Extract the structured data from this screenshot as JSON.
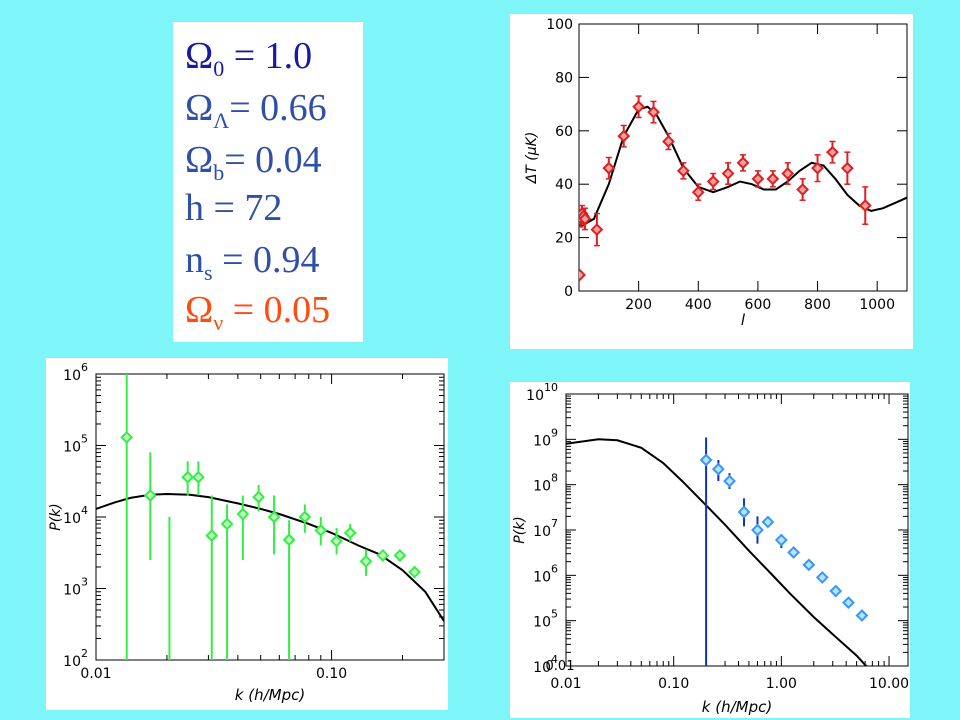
{
  "params": [
    {
      "sym": "Ω",
      "sub": "0",
      "text": " = 1.0",
      "color": "#1a1a9e"
    },
    {
      "sym": "Ω",
      "sub": "Λ",
      "text": "= 0.66",
      "color": "#2f4fa8"
    },
    {
      "sym": "Ω",
      "sub": "b",
      "text": "= 0.04",
      "color": "#2f4fa8"
    },
    {
      "sym": "",
      "sub": "",
      "text": "h = 72",
      "color": "#2f4fa8"
    },
    {
      "sym": "n",
      "sub": "s",
      "text": " = 0.94",
      "color": "#2f4fa8"
    },
    {
      "sym": "Ω",
      "sub": "ν",
      "text": " = 0.05",
      "color": "#ff4a10"
    }
  ],
  "chart_data": [
    {
      "type": "scatter",
      "xlabel": "l",
      "ylabel": "ΔT (μK)",
      "xlim": [
        0,
        1100
      ],
      "ylim": [
        0,
        100
      ],
      "xticks": [
        200,
        400,
        600,
        800,
        1000
      ],
      "xtick_labels": [
        "200",
        "400",
        "600",
        "800",
        "1000"
      ],
      "yticks": [
        0,
        20,
        40,
        60,
        80,
        100
      ],
      "ytick_labels": [
        "0",
        "20",
        "40",
        "60",
        "80",
        "100"
      ],
      "color": "#dd2020",
      "points": [
        [
          2,
          6,
          0
        ],
        [
          5,
          27,
          3
        ],
        [
          10,
          29,
          3
        ],
        [
          15,
          28,
          3
        ],
        [
          20,
          27,
          4
        ],
        [
          60,
          23,
          6
        ],
        [
          100,
          46,
          4
        ],
        [
          150,
          58,
          4
        ],
        [
          200,
          69,
          4
        ],
        [
          250,
          67,
          4
        ],
        [
          300,
          56,
          3
        ],
        [
          350,
          45,
          3
        ],
        [
          400,
          37,
          3
        ],
        [
          450,
          41,
          3
        ],
        [
          500,
          44,
          4
        ],
        [
          550,
          48,
          3
        ],
        [
          600,
          42,
          3
        ],
        [
          650,
          42,
          3
        ],
        [
          700,
          44,
          4
        ],
        [
          750,
          38,
          4
        ],
        [
          800,
          46,
          5
        ],
        [
          850,
          52,
          4
        ],
        [
          900,
          46,
          6
        ],
        [
          960,
          32,
          7
        ]
      ],
      "theory": [
        [
          2,
          24
        ],
        [
          50,
          27
        ],
        [
          100,
          40
        ],
        [
          150,
          58
        ],
        [
          200,
          68
        ],
        [
          230,
          69
        ],
        [
          260,
          66
        ],
        [
          300,
          58
        ],
        [
          350,
          46
        ],
        [
          400,
          39
        ],
        [
          450,
          37
        ],
        [
          500,
          39
        ],
        [
          540,
          41
        ],
        [
          580,
          40
        ],
        [
          620,
          38
        ],
        [
          660,
          38
        ],
        [
          700,
          41
        ],
        [
          740,
          45
        ],
        [
          780,
          48
        ],
        [
          820,
          47
        ],
        [
          860,
          42
        ],
        [
          900,
          36
        ],
        [
          940,
          32
        ],
        [
          980,
          30
        ],
        [
          1020,
          31
        ],
        [
          1060,
          33
        ],
        [
          1100,
          35
        ]
      ]
    },
    {
      "type": "scatter",
      "xlabel": "k   (h/Mpc)",
      "ylabel": "P(k)",
      "xscale": "log",
      "yscale": "log",
      "xlim": [
        0.01,
        0.3
      ],
      "ylim": [
        100,
        1000000
      ],
      "xticks": [
        0.01,
        0.1
      ],
      "xtick_labels": [
        "0.01",
        "0.10"
      ],
      "yticks": [
        100,
        1000,
        10000,
        100000,
        1000000
      ],
      "ytick_labels": [
        [
          "10",
          "2"
        ],
        [
          "10",
          "3"
        ],
        [
          "10",
          "4"
        ],
        [
          "10",
          "5"
        ],
        [
          "10",
          "6"
        ]
      ],
      "color": "#33ee44",
      "points": [
        [
          0.0135,
          130000,
          100,
          1000000
        ],
        [
          0.017,
          20000,
          2500,
          80000
        ],
        [
          0.0245,
          36000,
          20000,
          60000
        ],
        [
          0.0272,
          36000,
          20000,
          60000
        ],
        [
          0.031,
          5500,
          100,
          20000
        ],
        [
          0.036,
          8000,
          100,
          15000
        ],
        [
          0.042,
          11000,
          2500,
          20000
        ],
        [
          0.049,
          19000,
          12000,
          28000
        ],
        [
          0.057,
          10000,
          3000,
          20000
        ],
        [
          0.066,
          4800,
          100,
          9000
        ],
        [
          0.077,
          10000,
          6000,
          15000
        ],
        [
          0.09,
          6500,
          4000,
          10000
        ],
        [
          0.105,
          4600,
          3000,
          7000
        ],
        [
          0.12,
          6000,
          4500,
          8000
        ],
        [
          0.14,
          2400,
          1500,
          3500
        ],
        [
          0.165,
          2900,
          2400,
          3500
        ],
        [
          0.195,
          2900,
          2400,
          3400
        ],
        [
          0.225,
          1700,
          1400,
          2000
        ]
      ],
      "extra_segments": [
        [
          0.0205,
          100,
          10000
        ]
      ],
      "theory": [
        [
          0.01,
          13000
        ],
        [
          0.012,
          16000
        ],
        [
          0.014,
          18500
        ],
        [
          0.017,
          20500
        ],
        [
          0.02,
          21000
        ],
        [
          0.025,
          20500
        ],
        [
          0.03,
          19000
        ],
        [
          0.04,
          15500
        ],
        [
          0.05,
          13000
        ],
        [
          0.06,
          11000
        ],
        [
          0.08,
          8000
        ],
        [
          0.1,
          6000
        ],
        [
          0.13,
          4000
        ],
        [
          0.16,
          3000
        ],
        [
          0.2,
          1800
        ],
        [
          0.25,
          900
        ],
        [
          0.3,
          350
        ]
      ]
    },
    {
      "type": "scatter",
      "xlabel": "k   (h/Mpc)",
      "ylabel": "P(k)",
      "xscale": "log",
      "yscale": "log",
      "xlim": [
        0.01,
        15
      ],
      "ylim": [
        10000,
        10000000000
      ],
      "xticks": [
        0.01,
        0.1,
        1,
        10
      ],
      "xtick_labels": [
        "0.01",
        "0.10",
        "1.00",
        "10.00"
      ],
      "yticks": [
        10000,
        100000,
        1000000,
        10000000,
        100000000,
        1000000000,
        10000000000
      ],
      "ytick_labels": [
        [
          "10",
          "4"
        ],
        [
          "10",
          "5"
        ],
        [
          "10",
          "6"
        ],
        [
          "10",
          "7"
        ],
        [
          "10",
          "8"
        ],
        [
          "10",
          "9"
        ],
        [
          "10",
          "10"
        ]
      ],
      "overlay_label": "0.01",
      "color": "#3399ff",
      "errcolor": "#1133bb",
      "points": [
        [
          0.2,
          350000000,
          5000,
          1100000000
        ],
        [
          0.26,
          220000000,
          120000000,
          350000000
        ],
        [
          0.33,
          120000000,
          80000000,
          180000000
        ],
        [
          0.45,
          25000000,
          12000000,
          50000000
        ],
        [
          0.6,
          10000000,
          5000000,
          20000000
        ],
        [
          0.75,
          15000000,
          12000000,
          18000000
        ],
        [
          1.0,
          6000000,
          4000000,
          8000000
        ],
        [
          1.3,
          3200000,
          2500000,
          4000000
        ],
        [
          1.8,
          1700000,
          1400000,
          2000000
        ],
        [
          2.4,
          900000,
          750000,
          1100000
        ],
        [
          3.2,
          450000,
          380000,
          550000
        ],
        [
          4.2,
          250000,
          210000,
          300000
        ],
        [
          5.6,
          130000,
          110000,
          155000
        ]
      ],
      "theory": [
        [
          0.01,
          800000000
        ],
        [
          0.02,
          1000000000
        ],
        [
          0.03,
          950000000
        ],
        [
          0.05,
          650000000
        ],
        [
          0.08,
          300000000
        ],
        [
          0.12,
          120000000
        ],
        [
          0.2,
          35000000
        ],
        [
          0.3,
          13000000
        ],
        [
          0.5,
          3500000
        ],
        [
          0.8,
          1100000
        ],
        [
          1.2,
          400000
        ],
        [
          2,
          120000
        ],
        [
          3,
          50000
        ],
        [
          5,
          17000
        ],
        [
          8,
          5000
        ]
      ]
    }
  ]
}
